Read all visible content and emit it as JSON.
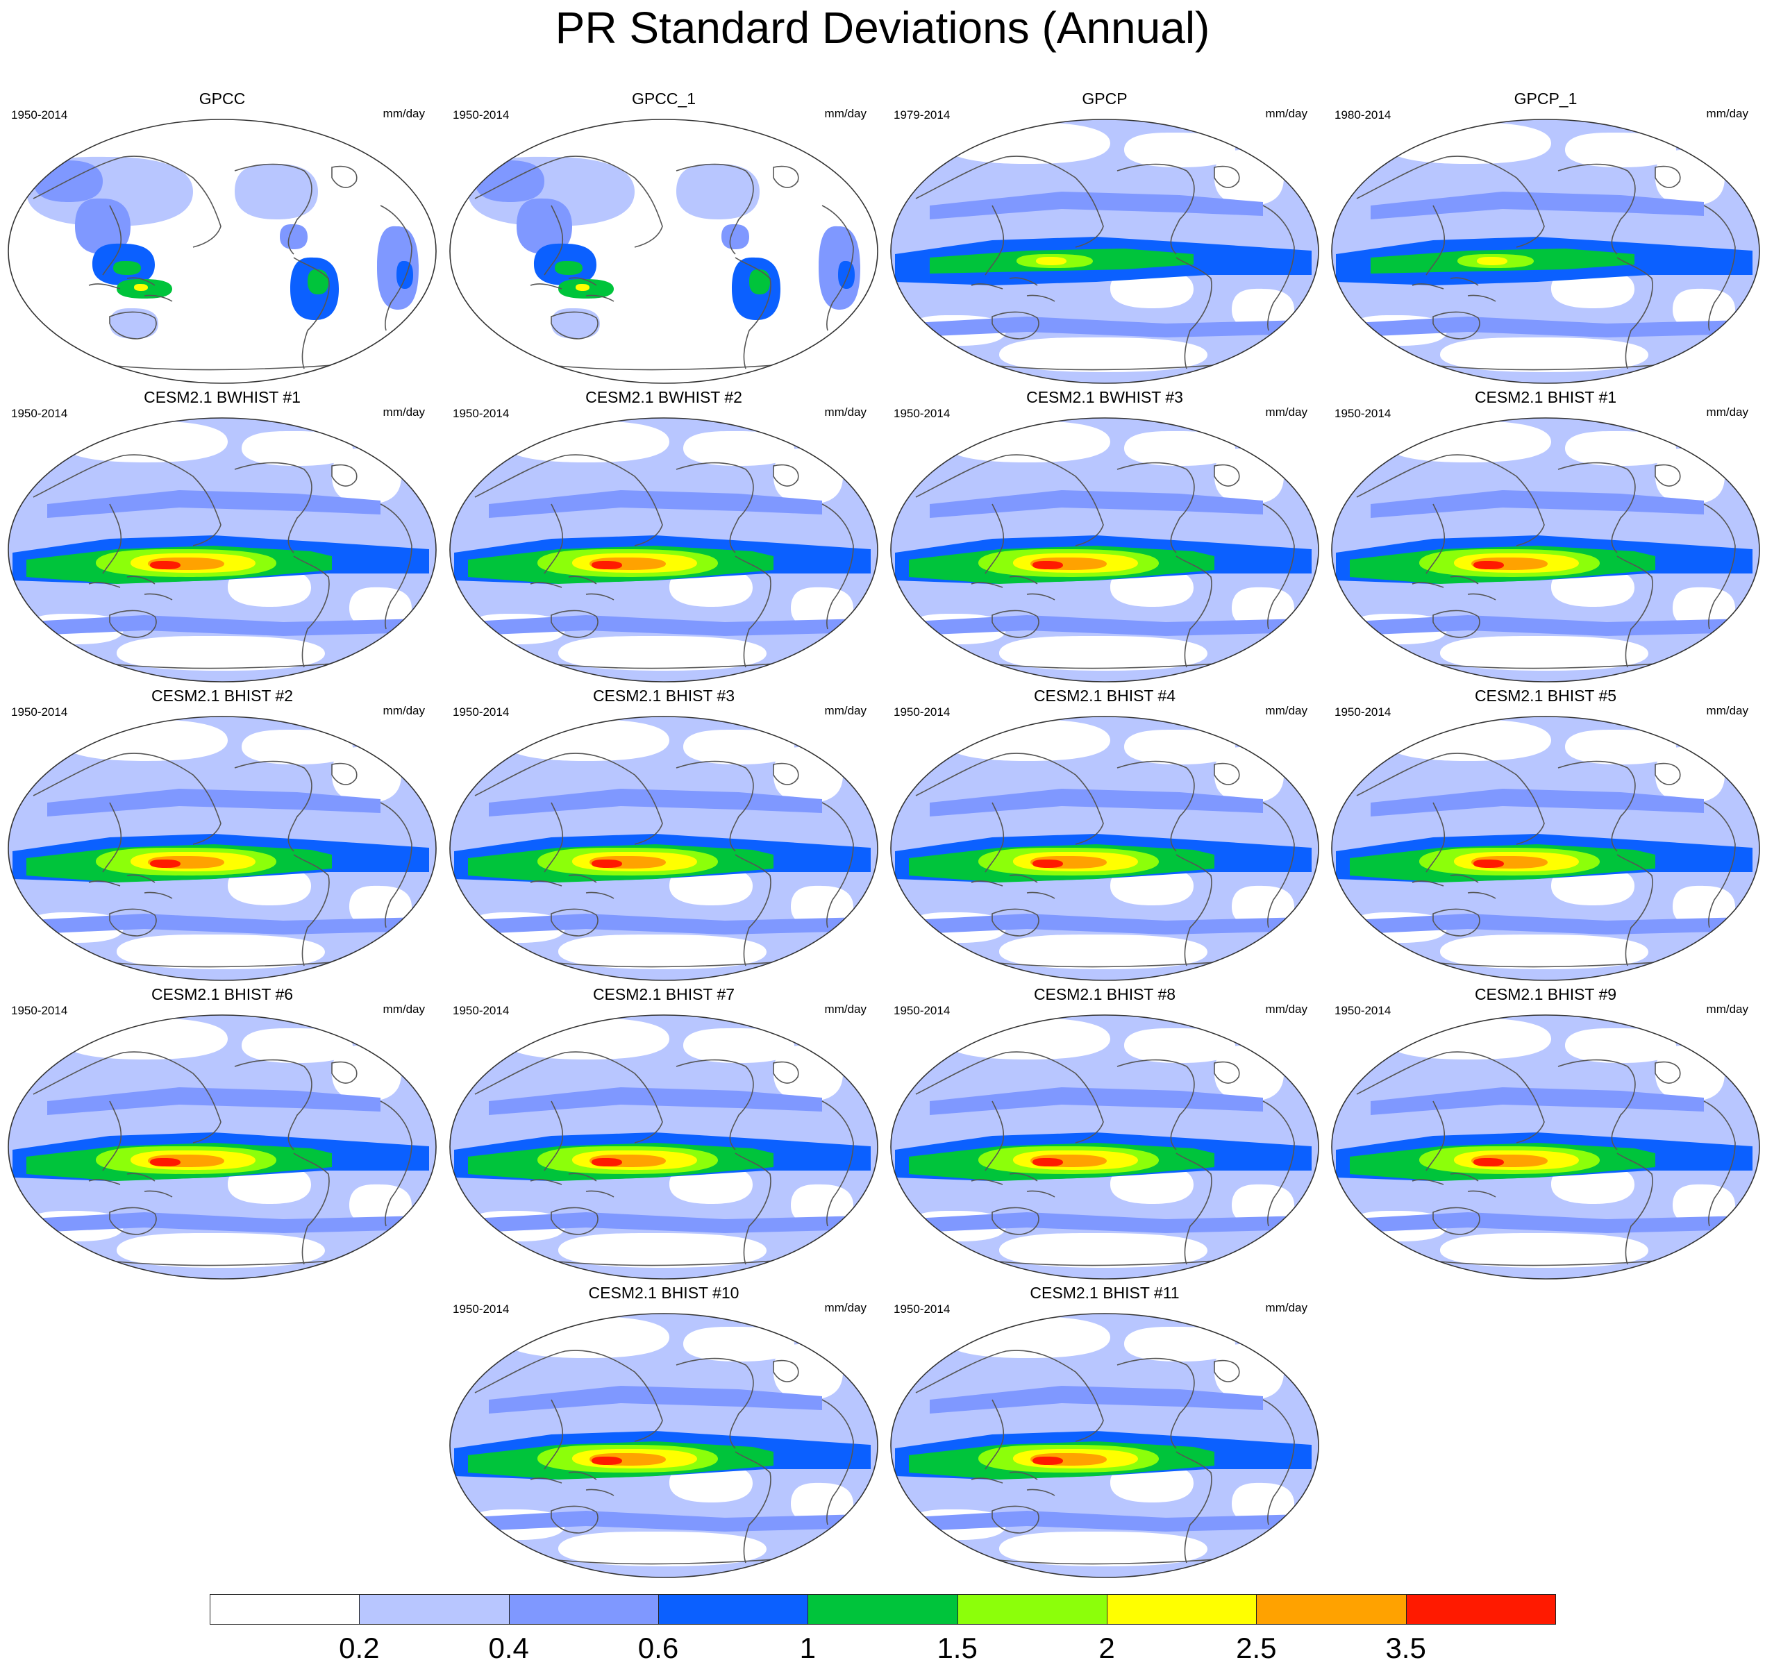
{
  "figure": {
    "title": "PR Standard Deviations (Annual)",
    "units": "mm/day"
  },
  "colorbar": {
    "colors": [
      "#ffffff",
      "#b8c6ff",
      "#7f98ff",
      "#0b60ff",
      "#00c43b",
      "#8cff0a",
      "#ffff00",
      "#ffa200",
      "#ff1a00"
    ],
    "labels": [
      "0.2",
      "0.4",
      "0.6",
      "1",
      "1.5",
      "2",
      "2.5",
      "3.5"
    ]
  },
  "panels": [
    {
      "name": "GPCC",
      "period": "1950-2014",
      "units": "mm/day",
      "kind": "land"
    },
    {
      "name": "GPCC_1",
      "period": "1950-2014",
      "units": "mm/day",
      "kind": "land"
    },
    {
      "name": "GPCP",
      "period": "1979-2014",
      "units": "mm/day",
      "kind": "obs"
    },
    {
      "name": "GPCP_1",
      "period": "1980-2014",
      "units": "mm/day",
      "kind": "obs"
    },
    {
      "name": "CESM2.1 BWHIST #1",
      "period": "1950-2014",
      "units": "mm/day",
      "kind": "model"
    },
    {
      "name": "CESM2.1 BWHIST #2",
      "period": "1950-2014",
      "units": "mm/day",
      "kind": "model"
    },
    {
      "name": "CESM2.1 BWHIST #3",
      "period": "1950-2014",
      "units": "mm/day",
      "kind": "model"
    },
    {
      "name": "CESM2.1 BHIST #1",
      "period": "1950-2014",
      "units": "mm/day",
      "kind": "model"
    },
    {
      "name": "CESM2.1 BHIST #2",
      "period": "1950-2014",
      "units": "mm/day",
      "kind": "model"
    },
    {
      "name": "CESM2.1 BHIST #3",
      "period": "1950-2014",
      "units": "mm/day",
      "kind": "model"
    },
    {
      "name": "CESM2.1 BHIST #4",
      "period": "1950-2014",
      "units": "mm/day",
      "kind": "model"
    },
    {
      "name": "CESM2.1 BHIST #5",
      "period": "1950-2014",
      "units": "mm/day",
      "kind": "model"
    },
    {
      "name": "CESM2.1 BHIST #6",
      "period": "1950-2014",
      "units": "mm/day",
      "kind": "model"
    },
    {
      "name": "CESM2.1 BHIST #7",
      "period": "1950-2014",
      "units": "mm/day",
      "kind": "model"
    },
    {
      "name": "CESM2.1 BHIST #8",
      "period": "1950-2014",
      "units": "mm/day",
      "kind": "model"
    },
    {
      "name": "CESM2.1 BHIST #9",
      "period": "1950-2014",
      "units": "mm/day",
      "kind": "model"
    },
    {
      "name": "CESM2.1 BHIST #10",
      "period": "1950-2014",
      "units": "mm/day",
      "kind": "model"
    },
    {
      "name": "CESM2.1 BHIST #11",
      "period": "1950-2014",
      "units": "mm/day",
      "kind": "model"
    }
  ]
}
